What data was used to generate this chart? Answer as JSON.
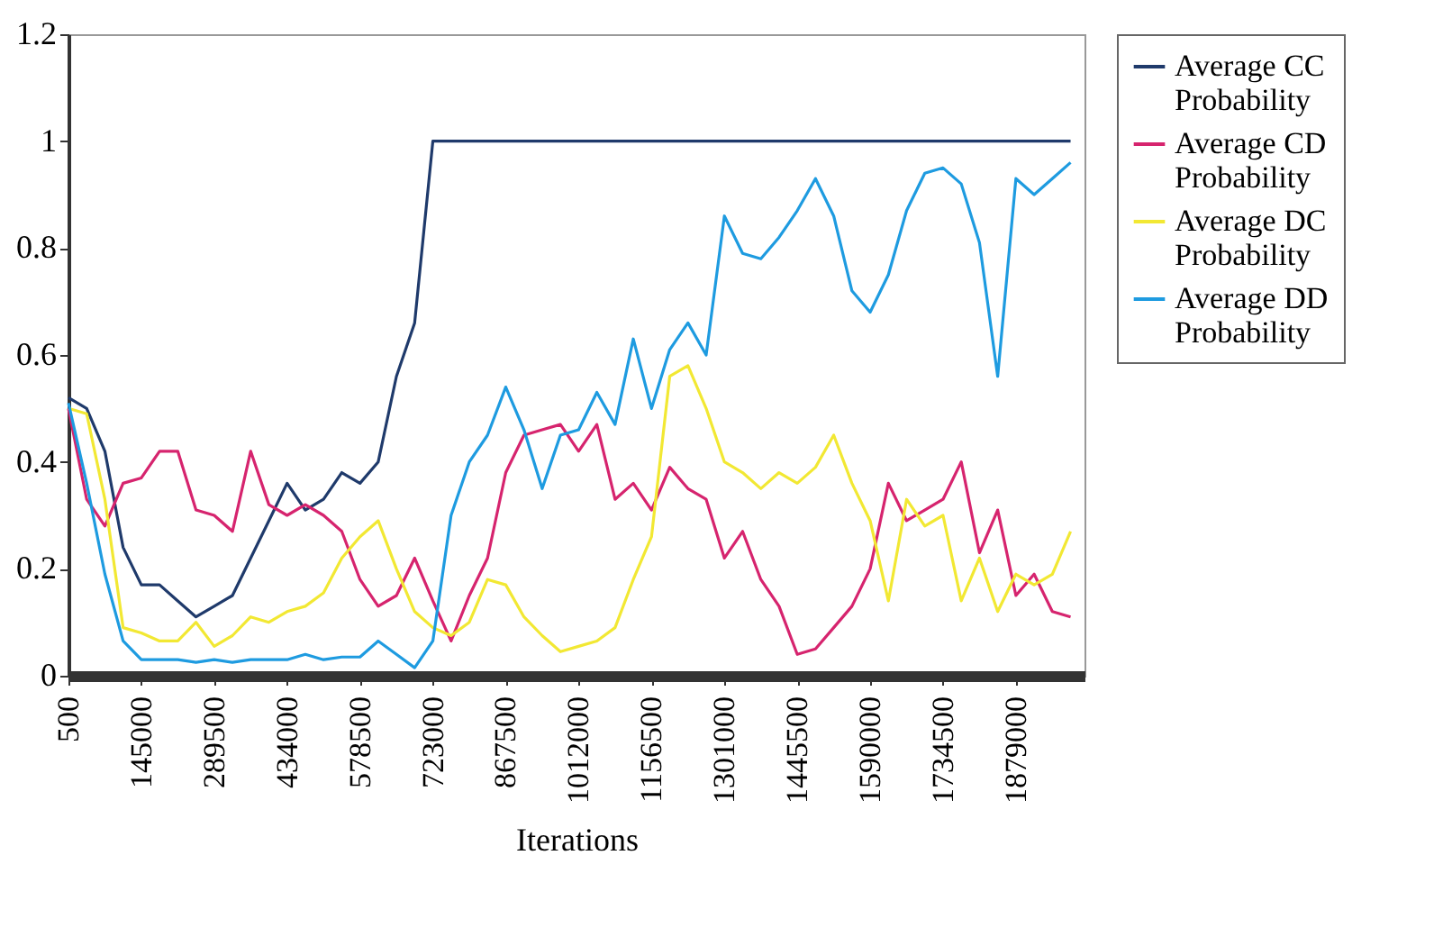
{
  "chart_data": {
    "type": "line",
    "xlabel": "Iterations",
    "x": [
      500,
      36625,
      72750,
      108875,
      145000,
      181125,
      217250,
      253375,
      289500,
      325625,
      361750,
      397875,
      434000,
      470125,
      506250,
      542375,
      578500,
      614625,
      650750,
      686875,
      723000,
      759125,
      795250,
      831375,
      867500,
      903625,
      939750,
      975875,
      1012000,
      1048125,
      1084250,
      1120375,
      1156500,
      1192625,
      1228750,
      1264875,
      1301000,
      1337125,
      1373250,
      1409375,
      1445500,
      1481625,
      1517750,
      1553875,
      1590000,
      1626125,
      1662250,
      1698375,
      1734500,
      1770625,
      1806750,
      1842875,
      1879000,
      1915125,
      1951250,
      1987375
    ],
    "series": [
      {
        "name": "Average CC Probability",
        "color": "#1f3a6b",
        "values": [
          0.52,
          0.5,
          0.42,
          0.24,
          0.17,
          0.17,
          0.14,
          0.11,
          0.13,
          0.15,
          0.22,
          0.29,
          0.36,
          0.31,
          0.33,
          0.38,
          0.36,
          0.4,
          0.56,
          0.66,
          1,
          1,
          1,
          1,
          1,
          1,
          1,
          1,
          1,
          1,
          1,
          1,
          1,
          1,
          1,
          1,
          1,
          1,
          1,
          1,
          1,
          1,
          1,
          1,
          1,
          1,
          1,
          1,
          1,
          1,
          1,
          1,
          1,
          1,
          1,
          1
        ]
      },
      {
        "name": "Average CD Probability",
        "color": "#d6246e",
        "values": [
          0.5,
          0.33,
          0.28,
          0.36,
          0.37,
          0.42,
          0.42,
          0.31,
          0.3,
          0.27,
          0.42,
          0.32,
          0.3,
          0.32,
          0.3,
          0.27,
          0.18,
          0.13,
          0.15,
          0.22,
          0.14,
          0.065,
          0.15,
          0.22,
          0.38,
          0.45,
          0.46,
          0.47,
          0.42,
          0.47,
          0.33,
          0.36,
          0.31,
          0.39,
          0.35,
          0.33,
          0.22,
          0.27,
          0.18,
          0.13,
          0.04,
          0.05,
          0.09,
          0.13,
          0.2,
          0.36,
          0.29,
          0.31,
          0.33,
          0.4,
          0.23,
          0.31,
          0.15,
          0.19,
          0.12,
          0.11
        ]
      },
      {
        "name": "Average DC Probability",
        "color": "#f2e833",
        "values": [
          0.5,
          0.49,
          0.33,
          0.09,
          0.08,
          0.065,
          0.065,
          0.1,
          0.055,
          0.075,
          0.11,
          0.1,
          0.12,
          0.13,
          0.155,
          0.22,
          0.26,
          0.29,
          0.2,
          0.12,
          0.09,
          0.075,
          0.1,
          0.18,
          0.17,
          0.11,
          0.075,
          0.045,
          0.055,
          0.065,
          0.09,
          0.18,
          0.26,
          0.56,
          0.58,
          0.5,
          0.4,
          0.38,
          0.35,
          0.38,
          0.36,
          0.39,
          0.45,
          0.36,
          0.29,
          0.14,
          0.33,
          0.28,
          0.3,
          0.14,
          0.22,
          0.12,
          0.19,
          0.17,
          0.19,
          0.27
        ]
      },
      {
        "name": "Average DD Probability",
        "color": "#1e9be0",
        "values": [
          0.51,
          0.36,
          0.19,
          0.065,
          0.03,
          0.03,
          0.03,
          0.025,
          0.03,
          0.025,
          0.03,
          0.03,
          0.03,
          0.04,
          0.03,
          0.035,
          0.035,
          0.065,
          0.04,
          0.015,
          0.065,
          0.3,
          0.4,
          0.45,
          0.54,
          0.46,
          0.35,
          0.45,
          0.46,
          0.53,
          0.47,
          0.63,
          0.5,
          0.61,
          0.66,
          0.6,
          0.86,
          0.79,
          0.78,
          0.82,
          0.87,
          0.93,
          0.86,
          0.72,
          0.68,
          0.75,
          0.87,
          0.94,
          0.95,
          0.92,
          0.81,
          0.56,
          0.93,
          0.9,
          0.93,
          0.96
        ]
      }
    ],
    "xlim": [
      500,
      2015000
    ],
    "xticks": [
      500,
      145000,
      289500,
      434000,
      578500,
      723000,
      867500,
      1012000,
      1156500,
      1301000,
      1445500,
      1590000,
      1734500,
      1879000
    ],
    "ylim": [
      0,
      1.2
    ],
    "yticks": [
      0,
      0.2,
      0.4,
      0.6,
      0.8,
      1,
      1.2
    ],
    "grid": false,
    "legend": "right",
    "marker": "none",
    "line_style": "solid"
  }
}
